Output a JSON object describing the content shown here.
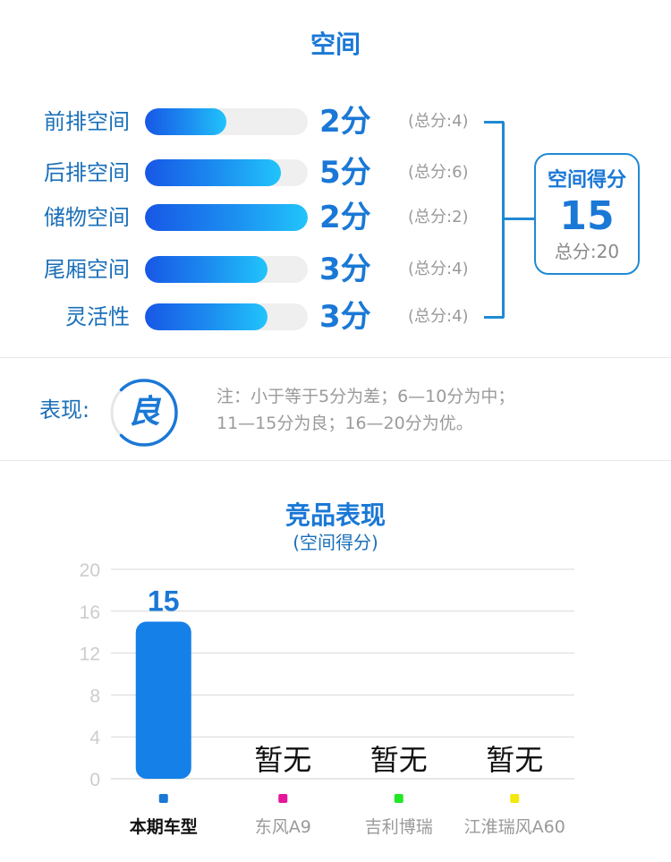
{
  "space": {
    "title": "空间",
    "rows": [
      {
        "label": "前排空间",
        "score": 2,
        "score_text": "2分",
        "total": 4,
        "total_text": "(总分:4)"
      },
      {
        "label": "后排空间",
        "score": 5,
        "score_text": "5分",
        "total": 6,
        "total_text": "(总分:6)"
      },
      {
        "label": "储物空间",
        "score": 2,
        "score_text": "2分",
        "total": 2,
        "total_text": "(总分:2)"
      },
      {
        "label": "尾厢空间",
        "score": 3,
        "score_text": "3分",
        "total": 4,
        "total_text": "(总分:4)"
      },
      {
        "label": "灵活性",
        "score": 3,
        "score_text": "3分",
        "total": 4,
        "total_text": "(总分:4)"
      }
    ],
    "summary": {
      "title": "空间得分",
      "value": "15",
      "total_text": "总分:20"
    }
  },
  "performance": {
    "label": "表现:",
    "grade": "良",
    "grade_fraction": 0.75,
    "note_line1": "注：小于等于5分为差；6—10分为中；",
    "note_line2": "11—15分为良；16—20分为优。"
  },
  "compare": {
    "title": "竞品表现",
    "subtitle": "(空间得分)"
  },
  "colors": {
    "accent": "#1a78d6",
    "bar": "#1580e8",
    "legend": [
      "#1a78d6",
      "#e6169a",
      "#22e626",
      "#f2e80c"
    ]
  },
  "chart_data": {
    "type": "bar",
    "title": "竞品表现",
    "subtitle": "(空间得分)",
    "categories": [
      "本期车型",
      "东风A9",
      "吉利博瑞",
      "江淮瑞风A60"
    ],
    "values": [
      15,
      null,
      null,
      null
    ],
    "value_labels": [
      "15",
      "暂无",
      "暂无",
      "暂无"
    ],
    "ylim": [
      0,
      20
    ],
    "yticks": [
      0,
      4,
      8,
      12,
      16,
      20
    ],
    "grid": true,
    "legend": "bottom"
  }
}
